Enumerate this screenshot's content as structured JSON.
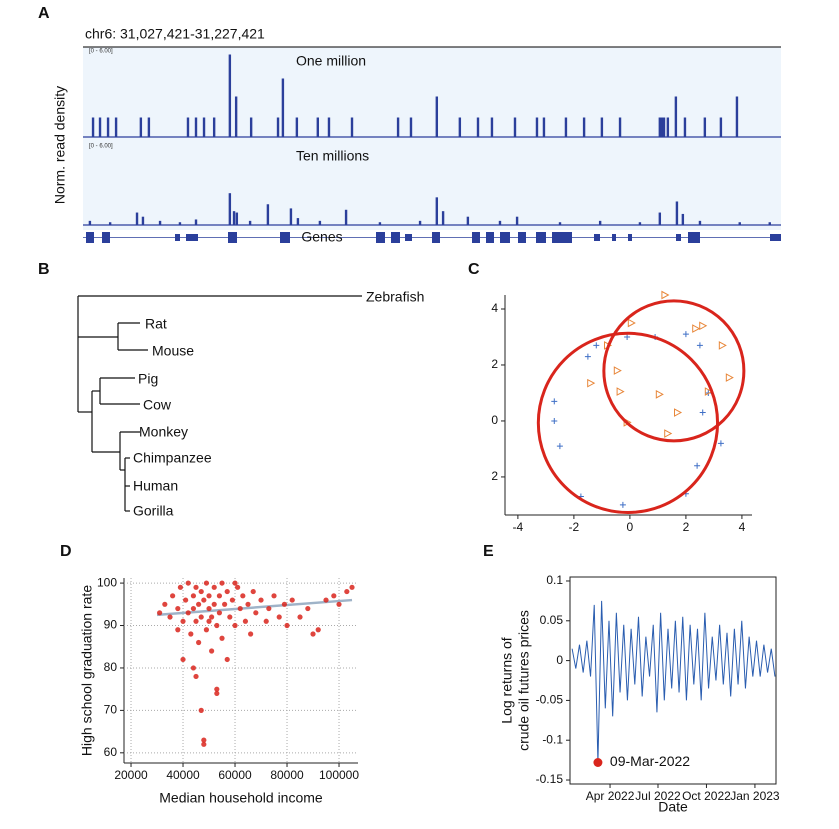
{
  "chart_data": [
    {
      "panel": "A",
      "type": "track",
      "title": "chr6: 31,027,421-31,227,421",
      "ylabel": "Norm. read density",
      "xlim": [
        31027421,
        31227421
      ],
      "ylim": [
        0,
        6
      ],
      "range_label": "[0 - 6.00]",
      "gene_label": "Genes",
      "series": [
        {
          "name": "One million",
          "color": "#2b3f9b",
          "x": [
            31030300,
            31032300,
            31034600,
            31036900,
            31044000,
            31046300,
            31057500,
            31059800,
            31062100,
            31065000,
            31069500,
            31071300,
            31075600,
            31083300,
            31084700,
            31088700,
            31094700,
            31097900,
            31104500,
            31117700,
            31121400,
            31128800,
            31135400,
            31140600,
            31144600,
            31151200,
            31157500,
            31159500,
            31165800,
            31171000,
            31176100,
            31181300,
            31192700,
            31193300,
            31193900,
            31195000,
            31197300,
            31199900,
            31205600,
            31210200,
            31214800
          ],
          "values": [
            1.3,
            1.3,
            1.3,
            1.3,
            1.3,
            1.3,
            1.3,
            1.3,
            1.3,
            1.3,
            5.5,
            2.7,
            1.3,
            1.3,
            3.9,
            1.3,
            1.3,
            1.3,
            1.3,
            1.3,
            1.3,
            2.7,
            1.3,
            1.3,
            1.3,
            1.3,
            1.3,
            1.3,
            1.3,
            1.3,
            1.3,
            1.3,
            1.3,
            1.3,
            1.3,
            1.3,
            2.7,
            1.3,
            1.3,
            1.3,
            2.7
          ]
        },
        {
          "name": "Ten millions",
          "color": "#2b3f9b",
          "x": [
            31029400,
            31035200,
            31042900,
            31044600,
            31049500,
            31055200,
            31059800,
            31069500,
            31070700,
            31071500,
            31075300,
            31080400,
            31087000,
            31089000,
            31095300,
            31102800,
            31112500,
            31124000,
            31128800,
            31130600,
            31137700,
            31146900,
            31151800,
            31164100,
            31175600,
            31187000,
            31192700,
            31197600,
            31199300,
            31204200,
            31215600,
            31224200
          ],
          "values": [
            0.3,
            0.2,
            0.9,
            0.6,
            0.3,
            0.2,
            0.4,
            2.3,
            1.0,
            0.9,
            0.3,
            1.5,
            1.2,
            0.5,
            0.3,
            1.1,
            0.2,
            0.3,
            2.0,
            1.0,
            0.6,
            0.3,
            0.6,
            0.2,
            0.3,
            0.2,
            0.9,
            1.7,
            0.8,
            0.3,
            0.2,
            0.2
          ]
        }
      ]
    },
    {
      "panel": "C",
      "type": "scatter",
      "frame": "axes",
      "xlim": [
        -4.46,
        4.36
      ],
      "ylim": [
        -3.36,
        4.5
      ],
      "xticks": [
        -4,
        -2,
        0,
        2,
        4
      ],
      "yticks": [
        4,
        2,
        0,
        {
          "value": -2,
          "label": "2"
        }
      ],
      "series": [
        {
          "marker": "plus",
          "color": "#3f6fc6",
          "x": [
            -1.5,
            -2.7,
            -2.7,
            -2.5,
            -1.75,
            -0.25,
            -1.2,
            -0.1,
            0.9,
            2.0,
            2.5,
            2.8,
            2.6,
            3.25,
            2.4,
            2.0
          ],
          "values": [
            2.3,
            0.7,
            0.0,
            -0.9,
            -2.7,
            -3.0,
            2.7,
            3.0,
            3.0,
            3.1,
            2.7,
            1.0,
            0.3,
            -0.8,
            -1.6,
            -2.6
          ]
        },
        {
          "marker": "triangle",
          "color": "#e8873a",
          "x": [
            1.25,
            0.05,
            2.35,
            2.6,
            -1.4,
            -0.35,
            1.05,
            -0.1,
            1.7,
            1.35,
            2.8,
            3.55,
            3.3,
            -0.8,
            -0.45
          ],
          "values": [
            4.5,
            3.5,
            3.3,
            3.4,
            1.35,
            1.05,
            0.95,
            -0.05,
            0.3,
            -0.45,
            1.05,
            1.55,
            2.7,
            2.7,
            1.8
          ]
        }
      ],
      "circles": {
        "color": "#d9251c",
        "x": [
          -0.07,
          1.57
        ],
        "y": [
          -0.07,
          1.79
        ],
        "r": [
          3.2,
          2.5
        ]
      }
    },
    {
      "panel": "D",
      "type": "scatter",
      "frame": "axes",
      "grid": true,
      "xlabel": "Median household income",
      "ylabel": "High school graduation rate",
      "xlim": [
        17300,
        107300
      ],
      "ylim": [
        57.6,
        101.2
      ],
      "xticks": [
        20000,
        40000,
        60000,
        80000,
        100000
      ],
      "yticks": [
        60,
        70,
        80,
        90,
        100
      ],
      "series": [
        {
          "marker": "dot",
          "color": "#d9251c",
          "x": [
            31000,
            33000,
            35000,
            36000,
            38000,
            39000,
            40000,
            41000,
            42000,
            42000,
            43000,
            44000,
            44000,
            45000,
            45000,
            46000,
            46000,
            47000,
            47000,
            47000,
            48000,
            48000,
            48000,
            49000,
            49000,
            50000,
            50000,
            51000,
            51000,
            52000,
            52000,
            53000,
            53000,
            53000,
            54000,
            54000,
            55000,
            55000,
            56000,
            57000,
            57000,
            58000,
            59000,
            60000,
            61000,
            62000,
            63000,
            64000,
            65000,
            66000,
            67000,
            68000,
            70000,
            72000,
            73000,
            75000,
            77000,
            79000,
            80000,
            82000,
            85000,
            88000,
            90000,
            92000,
            95000,
            98000,
            100000,
            103000,
            105000,
            40000,
            45000,
            44000,
            38000,
            60000,
            50000
          ],
          "values": [
            93,
            95,
            92,
            97,
            94,
            99,
            91,
            96,
            100,
            93,
            88,
            97,
            94,
            99,
            91,
            95,
            86,
            98,
            92,
            70,
            62,
            63,
            96,
            89,
            100,
            94,
            97,
            92,
            84,
            99,
            95,
            75,
            74,
            90,
            97,
            93,
            100,
            87,
            95,
            98,
            82,
            92,
            96,
            90,
            99,
            94,
            97,
            91,
            95,
            88,
            98,
            93,
            96,
            91,
            94,
            97,
            92,
            95,
            90,
            96,
            92,
            94,
            88,
            89,
            96,
            97,
            95,
            98,
            99,
            82,
            78,
            80,
            89,
            100,
            91
          ]
        }
      ],
      "trend": {
        "color": "#9fb3c8",
        "x": [
          30000,
          105000
        ],
        "values": [
          92.5,
          96
        ]
      }
    },
    {
      "panel": "E",
      "type": "line",
      "frame": "box",
      "xlabel": "Date",
      "ylabel": [
        "Log returns of",
        "crude oil futures prices"
      ],
      "xlim": [
        "2022-01-15",
        "2023-02-10"
      ],
      "ylim": [
        -0.155,
        0.105
      ],
      "xticks": [
        {
          "value": "2022-04-01",
          "label": "Apr 2022"
        },
        {
          "value": "2022-07-01",
          "label": "Jul 2022"
        },
        {
          "value": "2022-10-01",
          "label": "Oct 2022"
        },
        {
          "value": "2023-01-01",
          "label": "Jan 2023"
        }
      ],
      "yticks": [
        -0.15,
        -0.1,
        -0.05,
        0,
        0.05,
        0.1
      ],
      "series": [
        {
          "color": "#2a5db0",
          "x": [
            "2022-01-19",
            "2022-01-26",
            "2022-02-02",
            "2022-02-09",
            "2022-02-16",
            "2022-02-23",
            "2022-03-02",
            "2022-03-09",
            "2022-03-16",
            "2022-03-23",
            "2022-03-30",
            "2022-04-06",
            "2022-04-13",
            "2022-04-20",
            "2022-04-27",
            "2022-05-04",
            "2022-05-11",
            "2022-05-18",
            "2022-05-25",
            "2022-06-01",
            "2022-06-08",
            "2022-06-15",
            "2022-06-22",
            "2022-06-29",
            "2022-07-06",
            "2022-07-13",
            "2022-07-20",
            "2022-07-27",
            "2022-08-03",
            "2022-08-10",
            "2022-08-17",
            "2022-08-24",
            "2022-08-31",
            "2022-09-07",
            "2022-09-14",
            "2022-09-21",
            "2022-09-28",
            "2022-10-05",
            "2022-10-12",
            "2022-10-19",
            "2022-10-26",
            "2022-11-02",
            "2022-11-09",
            "2022-11-16",
            "2022-11-23",
            "2022-11-30",
            "2022-12-07",
            "2022-12-14",
            "2022-12-21",
            "2022-12-28",
            "2023-01-04",
            "2023-01-11",
            "2023-01-18",
            "2023-01-25",
            "2023-02-01",
            "2023-02-08"
          ],
          "values": [
            0.015,
            -0.01,
            0.02,
            -0.015,
            0.025,
            -0.02,
            0.07,
            -0.128,
            0.075,
            -0.06,
            0.05,
            -0.07,
            0.06,
            -0.04,
            0.045,
            -0.05,
            0.04,
            -0.03,
            0.055,
            -0.045,
            0.03,
            -0.02,
            0.045,
            -0.065,
            0.06,
            -0.05,
            0.04,
            -0.035,
            0.05,
            -0.04,
            0.055,
            -0.05,
            0.045,
            -0.03,
            0.04,
            -0.05,
            0.06,
            -0.035,
            0.03,
            -0.025,
            0.045,
            -0.03,
            0.035,
            -0.045,
            0.04,
            -0.03,
            0.05,
            -0.035,
            0.03,
            -0.02,
            0.025,
            -0.02,
            0.02,
            -0.015,
            0.015,
            -0.02
          ]
        }
      ],
      "annotation": {
        "x": "2022-03-09",
        "y": -0.128,
        "label": "09-Mar-2022",
        "color": "#d9251c"
      }
    }
  ],
  "tree": {
    "panel": "B",
    "leaves": [
      "Zebrafish",
      "Rat",
      "Mouse",
      "Pig",
      "Cow",
      "Monkey",
      "Chimpanzee",
      "Human",
      "Gorilla"
    ]
  }
}
